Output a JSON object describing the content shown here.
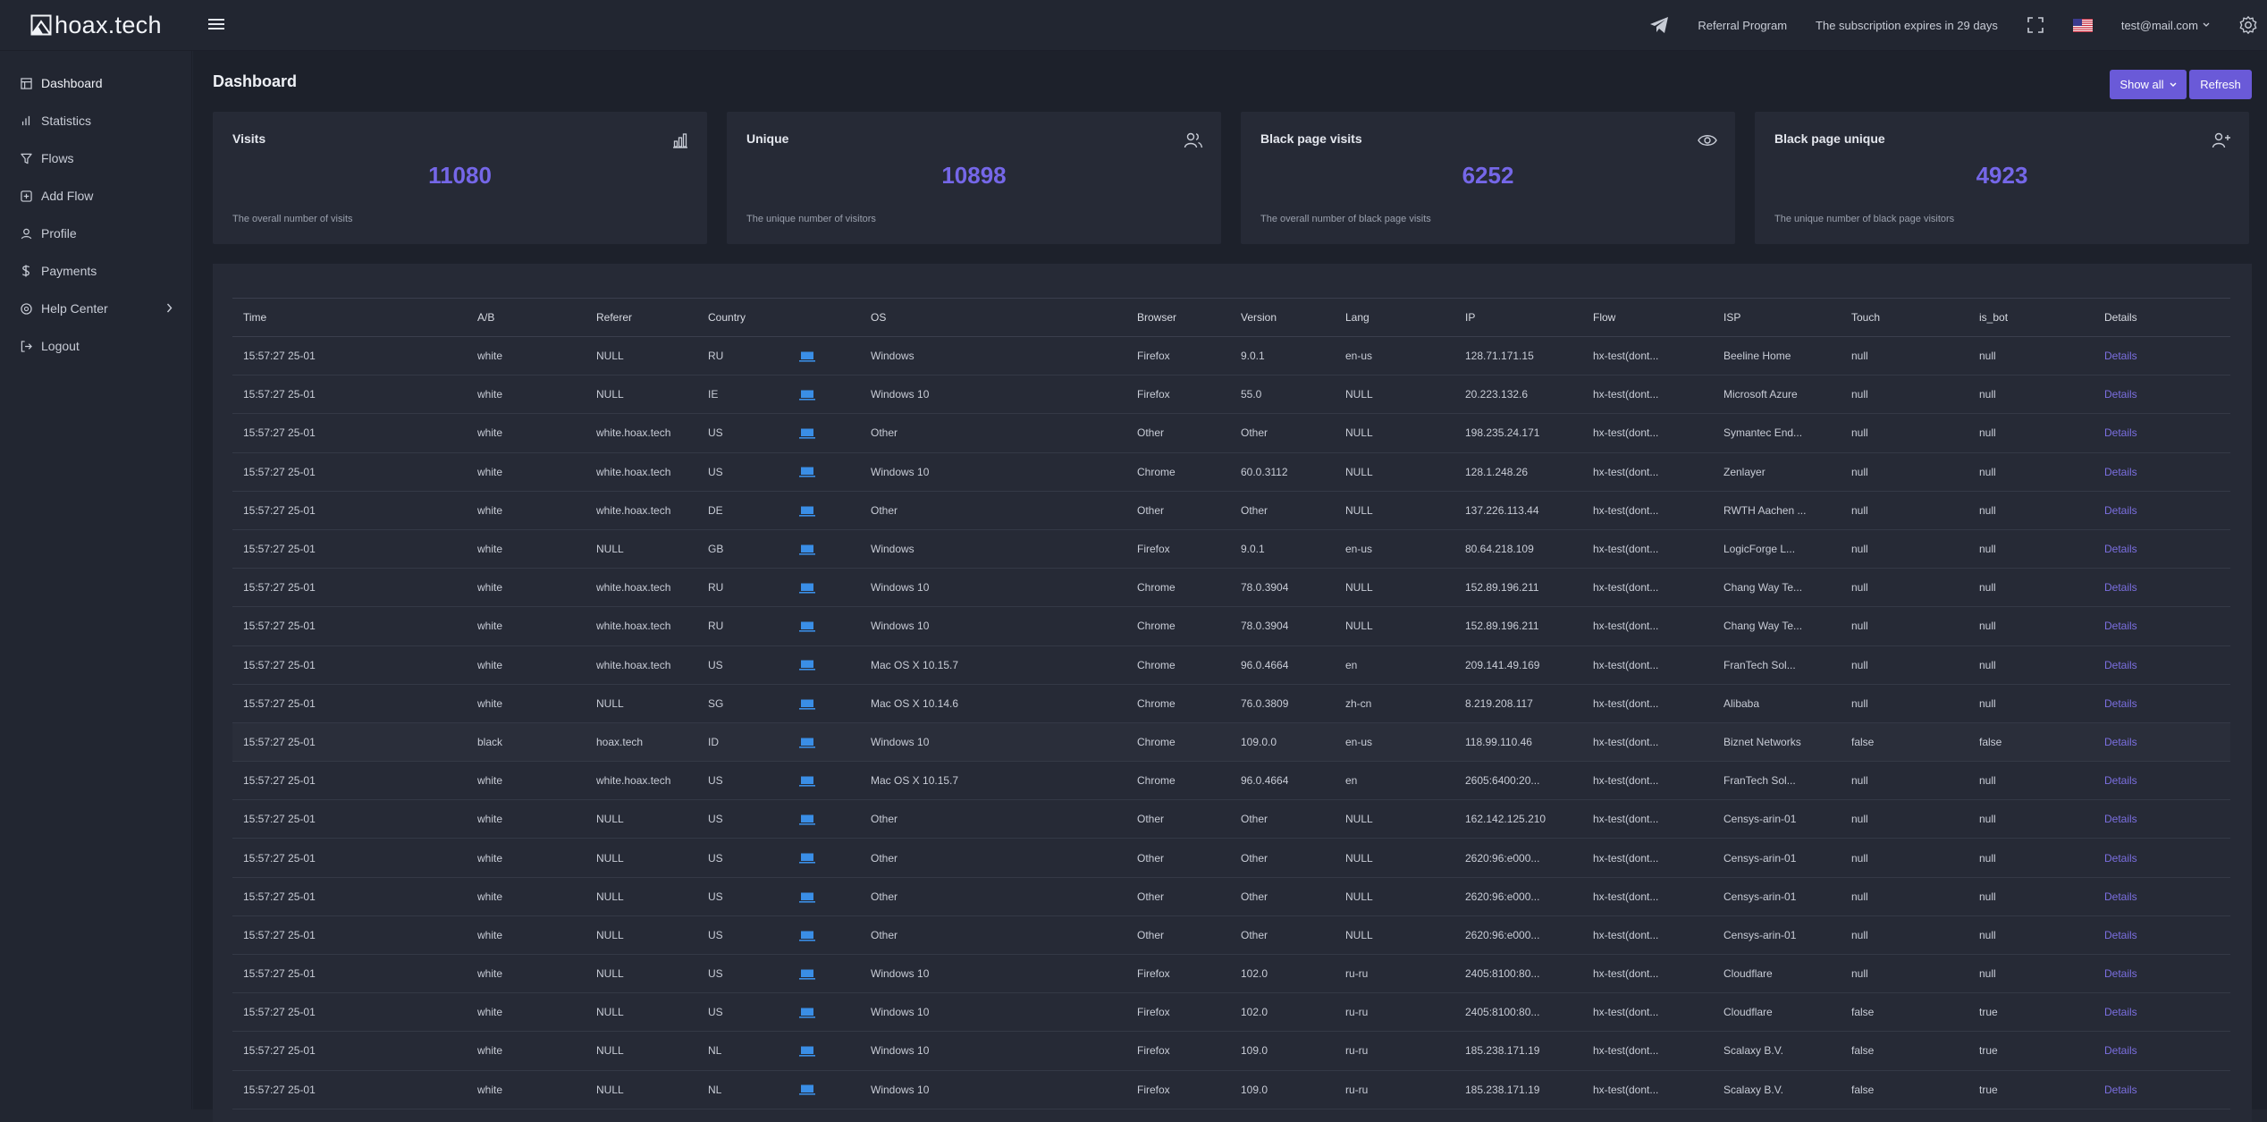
{
  "app": {
    "logo_text": "hoax.tech"
  },
  "header": {
    "referral_label": "Referral Program",
    "subscription_text": "The subscription expires in 29 days",
    "user_email": "test@mail.com"
  },
  "sidebar": {
    "items": [
      {
        "label": "Dashboard",
        "icon": "dashboard-icon"
      },
      {
        "label": "Statistics",
        "icon": "bar-chart-icon"
      },
      {
        "label": "Flows",
        "icon": "filter-icon"
      },
      {
        "label": "Add Flow",
        "icon": "plus-square-icon"
      },
      {
        "label": "Profile",
        "icon": "user-icon"
      },
      {
        "label": "Payments",
        "icon": "dollar-icon"
      },
      {
        "label": "Help Center",
        "icon": "help-circle-icon"
      },
      {
        "label": "Logout",
        "icon": "logout-icon"
      }
    ]
  },
  "main": {
    "title": "Dashboard",
    "show_all_label": "Show all",
    "refresh_label": "Refresh"
  },
  "cards": [
    {
      "title": "Visits",
      "value": "11080",
      "desc": "The overall number of visits",
      "icon": "bar-chart-icon"
    },
    {
      "title": "Unique",
      "value": "10898",
      "desc": "The unique number of visitors",
      "icon": "users-icon"
    },
    {
      "title": "Black page visits",
      "value": "6252",
      "desc": "The overall number of black page visits",
      "icon": "eye-icon"
    },
    {
      "title": "Black page unique",
      "value": "4923",
      "desc": "The unique number of black page visitors",
      "icon": "user-plus-icon"
    }
  ],
  "table": {
    "headers": [
      "Time",
      "A/B",
      "Referer",
      "Country",
      "",
      "OS",
      "Browser",
      "Version",
      "Lang",
      "IP",
      "Flow",
      "ISP",
      "Touch",
      "is_bot",
      "Details"
    ],
    "details_label": "Details",
    "rows": [
      [
        "15:57:27 25-01",
        "white",
        "NULL",
        "RU",
        "Windows",
        "Firefox",
        "9.0.1",
        "en-us",
        "128.71.171.15",
        "hx-test(dont...",
        "Beeline Home",
        "null",
        "null"
      ],
      [
        "15:57:27 25-01",
        "white",
        "NULL",
        "IE",
        "Windows 10",
        "Firefox",
        "55.0",
        "NULL",
        "20.223.132.6",
        "hx-test(dont...",
        "Microsoft Azure",
        "null",
        "null"
      ],
      [
        "15:57:27 25-01",
        "white",
        "white.hoax.tech",
        "US",
        "Other",
        "Other",
        "Other",
        "NULL",
        "198.235.24.171",
        "hx-test(dont...",
        "Symantec End...",
        "null",
        "null"
      ],
      [
        "15:57:27 25-01",
        "white",
        "white.hoax.tech",
        "US",
        "Windows 10",
        "Chrome",
        "60.0.3112",
        "NULL",
        "128.1.248.26",
        "hx-test(dont...",
        "Zenlayer",
        "null",
        "null"
      ],
      [
        "15:57:27 25-01",
        "white",
        "white.hoax.tech",
        "DE",
        "Other",
        "Other",
        "Other",
        "NULL",
        "137.226.113.44",
        "hx-test(dont...",
        "RWTH Aachen ...",
        "null",
        "null"
      ],
      [
        "15:57:27 25-01",
        "white",
        "NULL",
        "GB",
        "Windows",
        "Firefox",
        "9.0.1",
        "en-us",
        "80.64.218.109",
        "hx-test(dont...",
        "LogicForge L...",
        "null",
        "null"
      ],
      [
        "15:57:27 25-01",
        "white",
        "white.hoax.tech",
        "RU",
        "Windows 10",
        "Chrome",
        "78.0.3904",
        "NULL",
        "152.89.196.211",
        "hx-test(dont...",
        "Chang Way Te...",
        "null",
        "null"
      ],
      [
        "15:57:27 25-01",
        "white",
        "white.hoax.tech",
        "RU",
        "Windows 10",
        "Chrome",
        "78.0.3904",
        "NULL",
        "152.89.196.211",
        "hx-test(dont...",
        "Chang Way Te...",
        "null",
        "null"
      ],
      [
        "15:57:27 25-01",
        "white",
        "white.hoax.tech",
        "US",
        "Mac OS X 10.15.7",
        "Chrome",
        "96.0.4664",
        "en",
        "209.141.49.169",
        "hx-test(dont...",
        "FranTech Sol...",
        "null",
        "null"
      ],
      [
        "15:57:27 25-01",
        "white",
        "NULL",
        "SG",
        "Mac OS X 10.14.6",
        "Chrome",
        "76.0.3809",
        "zh-cn",
        "8.219.208.117",
        "hx-test(dont...",
        "Alibaba",
        "null",
        "null"
      ],
      [
        "15:57:27 25-01",
        "black",
        "hoax.tech",
        "ID",
        "Windows 10",
        "Chrome",
        "109.0.0",
        "en-us",
        "118.99.110.46",
        "hx-test(dont...",
        "Biznet Networks",
        "false",
        "false"
      ],
      [
        "15:57:27 25-01",
        "white",
        "white.hoax.tech",
        "US",
        "Mac OS X 10.15.7",
        "Chrome",
        "96.0.4664",
        "en",
        "2605:6400:20...",
        "hx-test(dont...",
        "FranTech Sol...",
        "null",
        "null"
      ],
      [
        "15:57:27 25-01",
        "white",
        "NULL",
        "US",
        "Other",
        "Other",
        "Other",
        "NULL",
        "162.142.125.210",
        "hx-test(dont...",
        "Censys-arin-01",
        "null",
        "null"
      ],
      [
        "15:57:27 25-01",
        "white",
        "NULL",
        "US",
        "Other",
        "Other",
        "Other",
        "NULL",
        "2620:96:e000...",
        "hx-test(dont...",
        "Censys-arin-01",
        "null",
        "null"
      ],
      [
        "15:57:27 25-01",
        "white",
        "NULL",
        "US",
        "Other",
        "Other",
        "Other",
        "NULL",
        "2620:96:e000...",
        "hx-test(dont...",
        "Censys-arin-01",
        "null",
        "null"
      ],
      [
        "15:57:27 25-01",
        "white",
        "NULL",
        "US",
        "Other",
        "Other",
        "Other",
        "NULL",
        "2620:96:e000...",
        "hx-test(dont...",
        "Censys-arin-01",
        "null",
        "null"
      ],
      [
        "15:57:27 25-01",
        "white",
        "NULL",
        "US",
        "Windows 10",
        "Firefox",
        "102.0",
        "ru-ru",
        "2405:8100:80...",
        "hx-test(dont...",
        "Cloudflare",
        "null",
        "null"
      ],
      [
        "15:57:27 25-01",
        "white",
        "NULL",
        "US",
        "Windows 10",
        "Firefox",
        "102.0",
        "ru-ru",
        "2405:8100:80...",
        "hx-test(dont...",
        "Cloudflare",
        "false",
        "true"
      ],
      [
        "15:57:27 25-01",
        "white",
        "NULL",
        "NL",
        "Windows 10",
        "Firefox",
        "109.0",
        "ru-ru",
        "185.238.171.19",
        "hx-test(dont...",
        "Scalaxy B.V.",
        "false",
        "true"
      ],
      [
        "15:57:27 25-01",
        "white",
        "NULL",
        "NL",
        "Windows 10",
        "Firefox",
        "109.0",
        "ru-ru",
        "185.238.171.19",
        "hx-test(dont...",
        "Scalaxy B.V.",
        "false",
        "true"
      ]
    ]
  },
  "colors": {
    "accent": "#6a5ad8",
    "value": "#7567e8",
    "device_icon": "#3a8ee6"
  }
}
